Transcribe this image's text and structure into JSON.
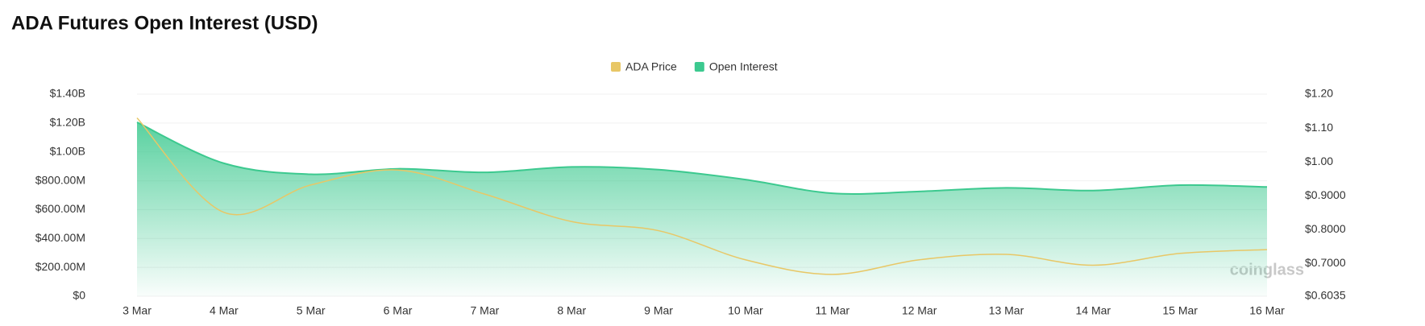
{
  "chart_data": {
    "type": "line",
    "title": "ADA Futures Open Interest (USD)",
    "watermark": "coinglass",
    "categories": [
      "3 Mar",
      "4 Mar",
      "5 Mar",
      "6 Mar",
      "7 Mar",
      "8 Mar",
      "9 Mar",
      "10 Mar",
      "11 Mar",
      "12 Mar",
      "13 Mar",
      "14 Mar",
      "15 Mar",
      "16 Mar"
    ],
    "series": [
      {
        "name": "ADA Price",
        "color": "#e8c766",
        "axis": "y2",
        "values": [
          1.13,
          0.851,
          0.932,
          0.976,
          0.905,
          0.824,
          0.797,
          0.711,
          0.668,
          0.711,
          0.727,
          0.695,
          0.73,
          0.741
        ]
      },
      {
        "name": "Open Interest",
        "color": "#3cc98f",
        "area": true,
        "values": [
          1205000000,
          921000000,
          845000000,
          883000000,
          858000000,
          896000000,
          877000000,
          808000000,
          713000000,
          726000000,
          751000000,
          732000000,
          770000000,
          757000000
        ]
      }
    ],
    "ylim": [
      0,
      1400000000
    ],
    "yticks": [
      {
        "value": 0,
        "label": "$0"
      },
      {
        "value": 200000000,
        "label": "$200.00M"
      },
      {
        "value": 400000000,
        "label": "$400.00M"
      },
      {
        "value": 600000000,
        "label": "$600.00M"
      },
      {
        "value": 800000000,
        "label": "$800.00M"
      },
      {
        "value": 1000000000,
        "label": "$1.00B"
      },
      {
        "value": 1200000000,
        "label": "$1.20B"
      },
      {
        "value": 1400000000,
        "label": "$1.40B"
      }
    ],
    "y2lim": [
      0.6035,
      1.2
    ],
    "y2ticks": [
      {
        "value": 0.6035,
        "label": "$0.6035"
      },
      {
        "value": 0.7,
        "label": "$0.7000"
      },
      {
        "value": 0.8,
        "label": "$0.8000"
      },
      {
        "value": 0.9,
        "label": "$0.9000"
      },
      {
        "value": 1.0,
        "label": "$1.00"
      },
      {
        "value": 1.1,
        "label": "$1.10"
      },
      {
        "value": 1.2,
        "label": "$1.20"
      }
    ],
    "grid": true,
    "legend": "top"
  }
}
